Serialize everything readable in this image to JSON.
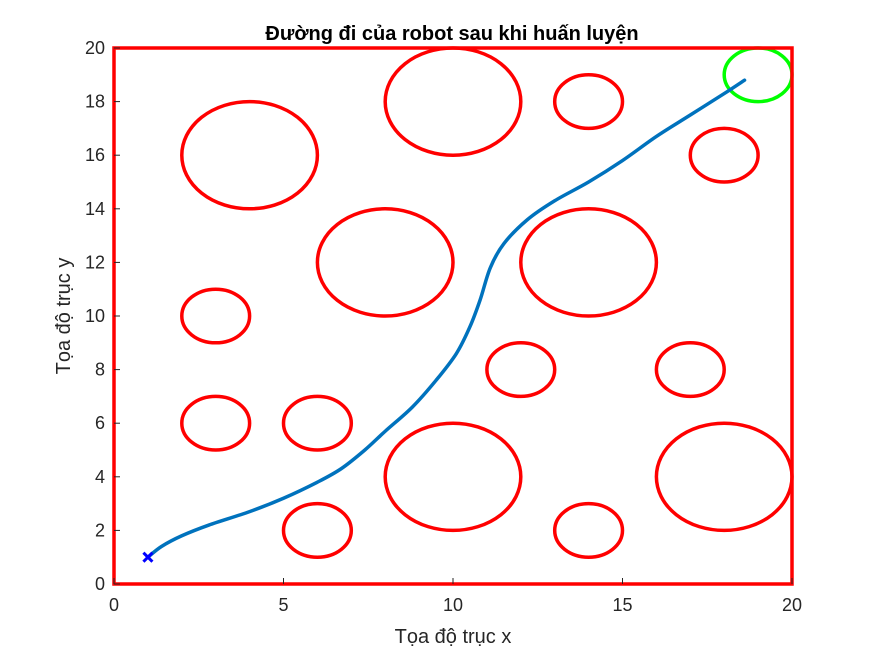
{
  "chart_data": {
    "type": "line",
    "title": "Đường đi của robot sau khi huấn luyện",
    "xlabel": "Tọa độ trục x",
    "ylabel": "Tọa độ trục y",
    "xlim": [
      0,
      20
    ],
    "ylim": [
      0,
      20
    ],
    "xticks": [
      0,
      5,
      10,
      15,
      20
    ],
    "yticks": [
      0,
      2,
      4,
      6,
      8,
      10,
      12,
      14,
      16,
      18,
      20
    ],
    "grid": false,
    "legend": "none",
    "obstacles": [
      {
        "cx": 4,
        "cy": 16,
        "rx": 2,
        "ry": 2
      },
      {
        "cx": 10,
        "cy": 18,
        "rx": 2,
        "ry": 2
      },
      {
        "cx": 14,
        "cy": 18,
        "rx": 1,
        "ry": 1
      },
      {
        "cx": 18,
        "cy": 16,
        "rx": 1,
        "ry": 1
      },
      {
        "cx": 8,
        "cy": 12,
        "rx": 2,
        "ry": 2
      },
      {
        "cx": 14,
        "cy": 12,
        "rx": 2,
        "ry": 2
      },
      {
        "cx": 3,
        "cy": 10,
        "rx": 1,
        "ry": 1
      },
      {
        "cx": 12,
        "cy": 8,
        "rx": 1,
        "ry": 1
      },
      {
        "cx": 17,
        "cy": 8,
        "rx": 1,
        "ry": 1
      },
      {
        "cx": 3,
        "cy": 6,
        "rx": 1,
        "ry": 1
      },
      {
        "cx": 6,
        "cy": 6,
        "rx": 1,
        "ry": 1
      },
      {
        "cx": 10,
        "cy": 4,
        "rx": 2,
        "ry": 2
      },
      {
        "cx": 18,
        "cy": 4,
        "rx": 2,
        "ry": 2
      },
      {
        "cx": 6,
        "cy": 2,
        "rx": 1,
        "ry": 1
      },
      {
        "cx": 14,
        "cy": 2,
        "rx": 1,
        "ry": 1
      }
    ],
    "goal": {
      "cx": 19,
      "cy": 19,
      "rx": 1,
      "ry": 1
    },
    "start": {
      "x": 1,
      "y": 1
    },
    "path": {
      "x": [
        1,
        1.4,
        2,
        2.8,
        4,
        5,
        6,
        6.7,
        7.4,
        8,
        8.8,
        9.5,
        10.1,
        10.5,
        10.8,
        11.1,
        11.5,
        12.2,
        13,
        14,
        15,
        16,
        17,
        18,
        18.6
      ],
      "y": [
        1,
        1.4,
        1.8,
        2.2,
        2.7,
        3.2,
        3.8,
        4.3,
        5,
        5.7,
        6.6,
        7.6,
        8.6,
        9.6,
        10.6,
        11.8,
        12.7,
        13.6,
        14.3,
        15.0,
        15.8,
        16.7,
        17.5,
        18.3,
        18.8
      ]
    },
    "colors": {
      "frame": "#FF0000",
      "obstacle": "#FF0000",
      "goal": "#00FF00",
      "path": "#0072BD",
      "start": "#0000FF",
      "axis": "#262626"
    }
  }
}
